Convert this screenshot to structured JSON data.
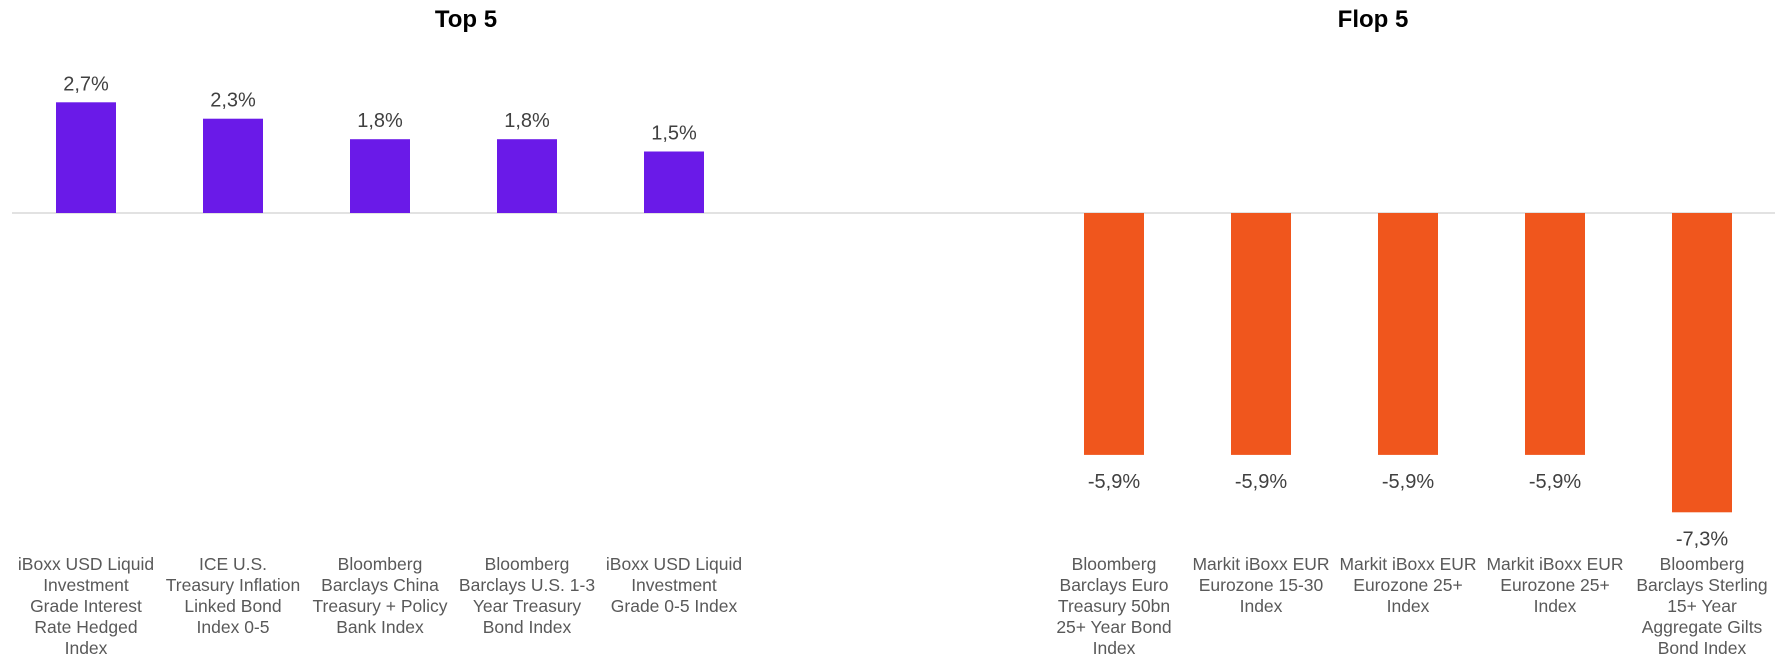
{
  "chart_data": [
    {
      "type": "bar",
      "title": "Top 5",
      "color": "#6a1ae8",
      "categories": [
        "iBoxx USD Liquid Investment Grade Interest Rate Hedged Index",
        "ICE U.S. Treasury Inflation Linked Bond Index 0-5",
        "Bloomberg Barclays China Treasury + Policy Bank Index",
        "Bloomberg Barclays U.S. 1-3 Year Treasury Bond Index",
        "iBoxx USD Liquid Investment Grade 0-5 Index"
      ],
      "category_lines": [
        [
          "iBoxx USD Liquid",
          "Investment",
          "Grade Interest",
          "Rate Hedged",
          "Index"
        ],
        [
          "ICE U.S.",
          "Treasury Inflation",
          "Linked Bond",
          "Index 0-5"
        ],
        [
          "Bloomberg",
          "Barclays China",
          "Treasury + Policy",
          "Bank Index"
        ],
        [
          "Bloomberg",
          "Barclays U.S. 1-3",
          "Year Treasury",
          "Bond Index"
        ],
        [
          "iBoxx USD Liquid",
          "Investment",
          "Grade 0-5 Index"
        ]
      ],
      "values": [
        2.7,
        2.3,
        1.8,
        1.8,
        1.5
      ],
      "data_labels": [
        "2,7%",
        "2,3%",
        "1,8%",
        "1,8%",
        "1,5%"
      ]
    },
    {
      "type": "bar",
      "title": "Flop 5",
      "color": "#f0561d",
      "categories": [
        "Bloomberg Barclays Euro Treasury 50bn 25+ Year Bond Index",
        "Markit iBoxx EUR Eurozone 15-30 Index",
        "Markit iBoxx EUR Eurozone 25+ Index",
        "Markit iBoxx EUR Eurozone 25+ Index",
        "Bloomberg Barclays Sterling 15+ Year Aggregate Gilts Bond Index"
      ],
      "category_lines": [
        [
          "Bloomberg",
          "Barclays Euro",
          "Treasury 50bn",
          "25+ Year Bond",
          "Index"
        ],
        [
          "Markit iBoxx EUR",
          "Eurozone 15-30",
          "Index"
        ],
        [
          "Markit iBoxx EUR",
          "Eurozone 25+",
          "Index"
        ],
        [
          "Markit iBoxx EUR",
          "Eurozone 25+",
          "Index"
        ],
        [
          "Bloomberg",
          "Barclays Sterling",
          "15+ Year",
          "Aggregate Gilts",
          "Bond Index"
        ]
      ],
      "values": [
        -5.9,
        -5.9,
        -5.9,
        -5.9,
        -7.3
      ],
      "data_labels": [
        "-5,9%",
        "-5,9%",
        "-5,9%",
        "-5,9%",
        "-7,3%"
      ]
    }
  ],
  "axis_color": "#d9d9d9"
}
